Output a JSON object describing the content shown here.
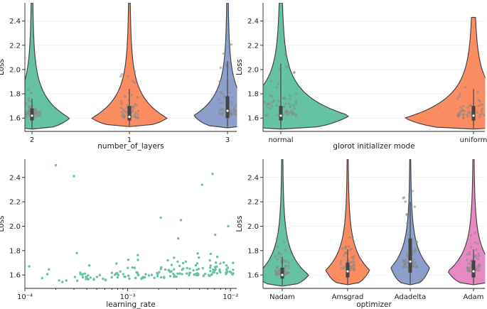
{
  "figure_title": "",
  "chart_data": [
    {
      "id": "layers",
      "type": "violin",
      "xlabel": "number_of_layers",
      "ylabel": "Loss",
      "ylim": [
        1.49,
        2.55
      ],
      "yticks": [
        1.6,
        1.8,
        2.0,
        2.2,
        2.4
      ],
      "ytick_labels": [
        "1.6",
        "1.8",
        "2.0",
        "2.2",
        "2.4"
      ],
      "grid": true,
      "categories": [
        {
          "label": "2",
          "color": "#66c2a5",
          "min": 1.51,
          "q1": 1.58,
          "median": 1.62,
          "q3": 1.68,
          "whisker_hi": 1.76,
          "peak": 1.6,
          "wide_width": 0.95,
          "top": 2.55
        },
        {
          "label": "1",
          "color": "#fc8d62",
          "min": 1.53,
          "q1": 1.58,
          "median": 1.61,
          "q3": 1.7,
          "whisker_hi": 1.84,
          "peak": 1.6,
          "wide_width": 0.95,
          "top": 2.55
        },
        {
          "label": "3",
          "color": "#8da0cb",
          "min": 1.52,
          "q1": 1.6,
          "median": 1.66,
          "q3": 1.78,
          "whisker_hi": 2.07,
          "peak": 1.62,
          "wide_width": 0.85,
          "top": 2.55
        }
      ]
    },
    {
      "id": "init",
      "type": "violin",
      "xlabel": "glorot initializer mode",
      "ylabel": "Loss",
      "ylim": [
        1.49,
        2.55
      ],
      "yticks": [
        1.6,
        1.8,
        2.0,
        2.2,
        2.4
      ],
      "ytick_labels": [
        "1.6",
        "1.8",
        "2.0",
        "2.2",
        "2.4"
      ],
      "grid": true,
      "categories": [
        {
          "label": "normal",
          "color": "#66c2a5",
          "min": 1.51,
          "q1": 1.58,
          "median": 1.62,
          "q3": 1.7,
          "whisker_hi": 2.05,
          "peak": 1.62,
          "wide_width": 0.95,
          "top": 2.55
        },
        {
          "label": "uniform",
          "color": "#fc8d62",
          "min": 1.51,
          "q1": 1.58,
          "median": 1.62,
          "q3": 1.7,
          "whisker_hi": 1.84,
          "peak": 1.6,
          "wide_width": 0.95,
          "top": 2.43
        }
      ]
    },
    {
      "id": "lr",
      "type": "scatter",
      "xlabel": "learning_rate",
      "ylabel": "Loss",
      "xscale": "log",
      "xlim": [
        0.0001,
        0.0115
      ],
      "ylim": [
        1.49,
        2.55
      ],
      "xticks": [
        0.0001,
        0.001,
        0.01
      ],
      "xtick_labels": [
        "10⁻⁴",
        "10⁻³",
        "10⁻²"
      ],
      "yticks": [
        1.6,
        1.8,
        2.0,
        2.2,
        2.4
      ],
      "ytick_labels": [
        "1.6",
        "1.8",
        "2.0",
        "2.2",
        "2.4"
      ],
      "grid": false,
      "color": "#66c2a5",
      "outliers": [
        [
          0.0002,
          2.5
        ],
        [
          0.0003,
          2.41
        ],
        [
          0.0067,
          2.43
        ],
        [
          0.0053,
          2.34
        ],
        [
          0.0021,
          2.07
        ],
        [
          0.0033,
          2.05
        ],
        [
          0.0095,
          2.0
        ],
        [
          0.0031,
          1.9
        ],
        [
          0.0071,
          1.93
        ],
        [
          0.00032,
          1.78
        ],
        [
          0.00011,
          1.67
        ]
      ],
      "n_bulk": 160
    },
    {
      "id": "optimizer",
      "type": "violin",
      "xlabel": "optimizer",
      "ylabel": "Loss",
      "ylim": [
        1.49,
        2.55
      ],
      "yticks": [
        1.6,
        1.8,
        2.0,
        2.2,
        2.4
      ],
      "ytick_labels": [
        "1.6",
        "1.8",
        "2.0",
        "2.2",
        "2.4"
      ],
      "grid": true,
      "categories": [
        {
          "label": "Nadam",
          "color": "#66c2a5",
          "min": 1.51,
          "q1": 1.57,
          "median": 1.6,
          "q3": 1.66,
          "whisker_hi": 1.75,
          "peak": 1.6,
          "wide_width": 0.85,
          "top": 2.55
        },
        {
          "label": "Amsgrad",
          "color": "#fc8d62",
          "min": 1.52,
          "q1": 1.58,
          "median": 1.63,
          "q3": 1.7,
          "whisker_hi": 1.81,
          "peak": 1.64,
          "wide_width": 0.7,
          "top": 2.55
        },
        {
          "label": "Adadelta",
          "color": "#8da0cb",
          "min": 1.52,
          "q1": 1.62,
          "median": 1.71,
          "q3": 1.9,
          "whisker_hi": 2.2,
          "peak": 1.66,
          "wide_width": 0.62,
          "top": 2.55
        },
        {
          "label": "Adam",
          "color": "#e78ac3",
          "min": 1.52,
          "q1": 1.58,
          "median": 1.63,
          "q3": 1.72,
          "whisker_hi": 1.81,
          "peak": 1.63,
          "wide_width": 0.82,
          "top": 2.55
        }
      ]
    }
  ]
}
